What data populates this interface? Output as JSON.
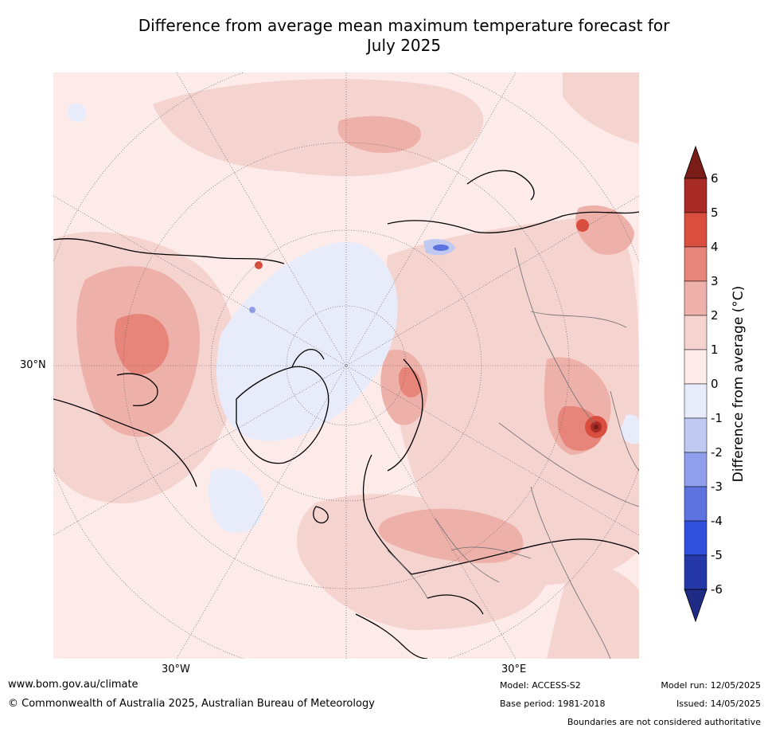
{
  "title_line1": "Difference from average mean maximum temperature forecast for",
  "title_line2": "July 2025",
  "axis_labels": {
    "lat": "30°N",
    "lon_west": "30°W",
    "lon_east": "30°E"
  },
  "colorbar": {
    "label": "Difference from average (°C)",
    "ticks": [
      "6",
      "5",
      "4",
      "3",
      "2",
      "1",
      "0",
      "-1",
      "-2",
      "-3",
      "-4",
      "-5",
      "-6"
    ],
    "colors": [
      "#7a1c18",
      "#a82b25",
      "#d94e3f",
      "#e8857a",
      "#eeb1aa",
      "#f5d3cf",
      "#fcebe9",
      "#e8ecfa",
      "#c0c9f2",
      "#8f9feb",
      "#5c73e0",
      "#2f4fdc",
      "#2538a8",
      "#1f2b84"
    ]
  },
  "footer": {
    "url": "www.bom.gov.au/climate",
    "copyright": "© Commonwealth of Australia 2025, Australian Bureau of Meteorology",
    "model": "Model: ACCESS-S2",
    "base_period": "Base period: 1981-2018",
    "model_run": "Model run: 12/05/2025",
    "issued": "Issued: 14/05/2025",
    "disclaimer": "Boundaries are not considered authoritative"
  }
}
